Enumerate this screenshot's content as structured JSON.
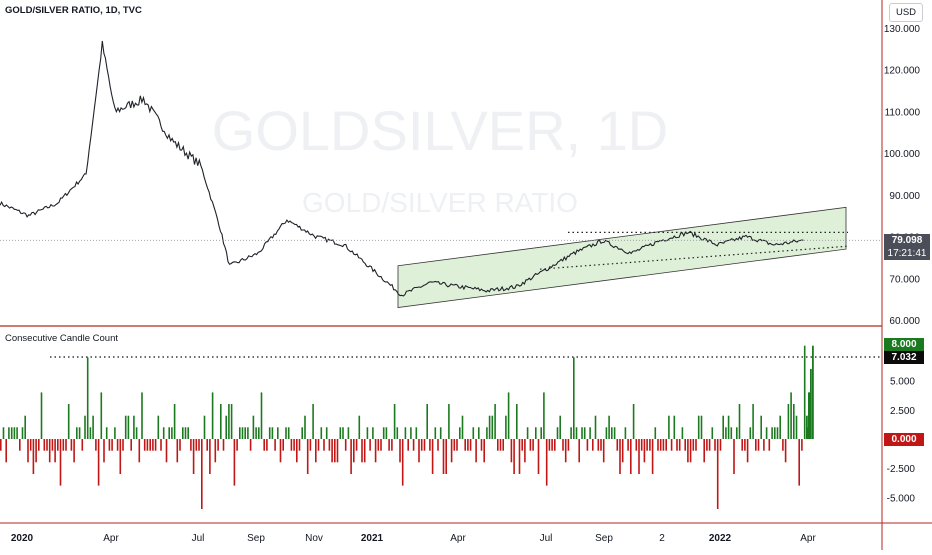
{
  "header": {
    "title": "GOLD/SILVER RATIO, 1D, TVC",
    "currency": "USD"
  },
  "watermark": {
    "symbol": "GOLDSILVER, 1D",
    "name": "GOLD/SILVER RATIO"
  },
  "indicator": {
    "title": "Consecutive Candle Count"
  },
  "price_tag": {
    "value": "79.098",
    "countdown": "17:21:41"
  },
  "indicator_tags": {
    "max": "8.000",
    "dotted": "7.032",
    "current": "0.000"
  },
  "colors": {
    "up": "#1b7a1f",
    "down": "#c01616",
    "channel_fill": "#dff0d8",
    "divider": "#b3271f",
    "text": "#131722"
  },
  "chart_data": [
    {
      "type": "line",
      "title": "GOLD/SILVER RATIO, 1D, TVC",
      "xlabel": "",
      "ylabel": "",
      "ylim": [
        58,
        132
      ],
      "y_ticks": [
        "130.000",
        "120.000",
        "110.000",
        "100.000",
        "90.000",
        "80.000",
        "70.000",
        "60.000"
      ],
      "x_ticks": [
        "2020",
        "Apr",
        "Jul",
        "Sep",
        "Nov",
        "2021",
        "Apr",
        "Jul",
        "Sep",
        "2",
        "2022",
        "Apr"
      ],
      "series": [
        {
          "x": [
            "2019-12",
            "2020-01",
            "2020-02",
            "2020-03",
            "2020-03-18",
            "2020-04",
            "2020-05",
            "2020-06",
            "2020-07",
            "2020-07-20",
            "2020-08",
            "2020-09",
            "2020-10",
            "2020-11",
            "2020-12",
            "2021-01",
            "2021-02",
            "2021-03",
            "2021-04",
            "2021-05",
            "2021-06",
            "2021-07",
            "2021-08",
            "2021-09",
            "2021-10",
            "2021-11",
            "2021-12",
            "2022-01",
            "2022-02",
            "2022-03",
            "2022-04"
          ],
          "values": [
            88,
            85,
            88,
            95,
            126,
            110,
            113,
            103,
            97,
            83,
            73,
            76,
            84,
            80,
            78,
            72,
            66,
            69,
            68,
            67,
            68,
            72,
            76,
            79,
            76,
            79,
            81,
            78,
            80,
            78,
            79.1
          ]
        }
      ],
      "last_value": 79.098,
      "channel": {
        "upper": [
          73,
          87
        ],
        "lower": [
          63,
          77
        ]
      },
      "horizontal_levels": [
        81,
        76.5
      ],
      "grid": false
    },
    {
      "type": "bar",
      "title": "Consecutive Candle Count",
      "ylim": [
        -6.5,
        8.5
      ],
      "y_ticks": [
        "5.000",
        "2.500",
        "-2.500",
        "-5.000"
      ],
      "dotted_level": 7.032,
      "max_value": 8.0,
      "last_value": 0.0,
      "peaks": [
        {
          "period": "2020-03",
          "value": 7
        },
        {
          "period": "2020-07",
          "value": -6
        },
        {
          "period": "2021-08",
          "value": 7
        },
        {
          "period": "2022-01",
          "value": -6
        },
        {
          "period": "2022-04",
          "value": 8
        }
      ]
    }
  ]
}
